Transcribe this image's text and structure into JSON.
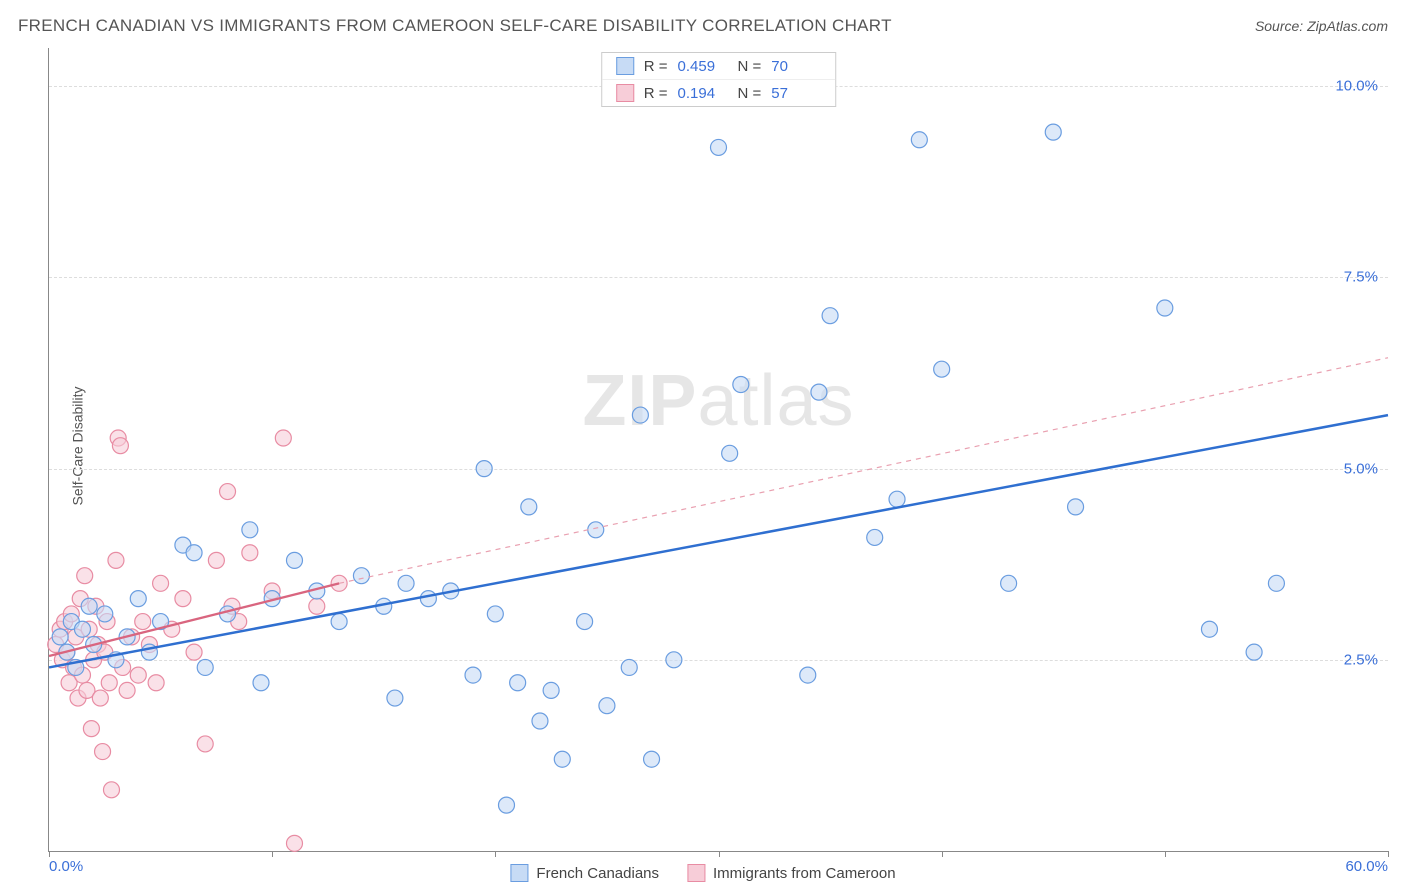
{
  "header": {
    "title": "FRENCH CANADIAN VS IMMIGRANTS FROM CAMEROON SELF-CARE DISABILITY CORRELATION CHART",
    "source_prefix": "Source: ",
    "source": "ZipAtlas.com"
  },
  "chart": {
    "type": "scatter",
    "ylabel": "Self-Care Disability",
    "xlim": [
      0,
      60
    ],
    "ylim": [
      0,
      10.5
    ],
    "xtick_positions": [
      0,
      10,
      20,
      30,
      40,
      50,
      60
    ],
    "ytick_positions": [
      2.5,
      5.0,
      7.5,
      10.0
    ],
    "ytick_labels": [
      "2.5%",
      "5.0%",
      "7.5%",
      "10.0%"
    ],
    "xaxis_min_label": "0.0%",
    "xaxis_max_label": "60.0%",
    "grid_color": "#dddddd",
    "axis_color": "#888888",
    "background_color": "#ffffff",
    "ytick_label_color": "#3a6fd8",
    "marker_radius": 8,
    "marker_stroke_width": 1.2,
    "watermark": "ZIPatlas",
    "series": [
      {
        "name": "French Canadians",
        "fill": "#c7dbf5",
        "stroke": "#6a9de0",
        "fill_opacity": 0.6,
        "r_value": "0.459",
        "n_value": "70",
        "trend": {
          "x1": 0,
          "y1": 2.4,
          "x2": 60,
          "y2": 5.7,
          "color": "#2f6fd0",
          "width": 2.5,
          "dash": "none"
        },
        "points": [
          [
            0.5,
            2.8
          ],
          [
            0.8,
            2.6
          ],
          [
            1.0,
            3.0
          ],
          [
            1.2,
            2.4
          ],
          [
            1.5,
            2.9
          ],
          [
            1.8,
            3.2
          ],
          [
            2.0,
            2.7
          ],
          [
            2.5,
            3.1
          ],
          [
            3.0,
            2.5
          ],
          [
            3.5,
            2.8
          ],
          [
            4.0,
            3.3
          ],
          [
            4.5,
            2.6
          ],
          [
            5.0,
            3.0
          ],
          [
            6.0,
            4.0
          ],
          [
            6.5,
            3.9
          ],
          [
            7.0,
            2.4
          ],
          [
            8.0,
            3.1
          ],
          [
            9.0,
            4.2
          ],
          [
            9.5,
            2.2
          ],
          [
            10.0,
            3.3
          ],
          [
            11.0,
            3.8
          ],
          [
            12.0,
            3.4
          ],
          [
            13.0,
            3.0
          ],
          [
            14.0,
            3.6
          ],
          [
            15.0,
            3.2
          ],
          [
            15.5,
            2.0
          ],
          [
            16.0,
            3.5
          ],
          [
            17.0,
            3.3
          ],
          [
            18.0,
            3.4
          ],
          [
            19.0,
            2.3
          ],
          [
            19.5,
            5.0
          ],
          [
            20.0,
            3.1
          ],
          [
            20.5,
            0.6
          ],
          [
            21.0,
            2.2
          ],
          [
            21.5,
            4.5
          ],
          [
            22.0,
            1.7
          ],
          [
            22.5,
            2.1
          ],
          [
            23.0,
            1.2
          ],
          [
            24.0,
            3.0
          ],
          [
            24.5,
            4.2
          ],
          [
            25.0,
            1.9
          ],
          [
            26.0,
            2.4
          ],
          [
            26.5,
            5.7
          ],
          [
            27.0,
            1.2
          ],
          [
            28.0,
            2.5
          ],
          [
            30.0,
            9.2
          ],
          [
            30.5,
            5.2
          ],
          [
            31.0,
            6.1
          ],
          [
            34.0,
            2.3
          ],
          [
            34.5,
            6.0
          ],
          [
            35.0,
            7.0
          ],
          [
            37.0,
            4.1
          ],
          [
            38.0,
            4.6
          ],
          [
            39.0,
            9.3
          ],
          [
            40.0,
            6.3
          ],
          [
            43.0,
            3.5
          ],
          [
            45.0,
            9.4
          ],
          [
            46.0,
            4.5
          ],
          [
            50.0,
            7.1
          ],
          [
            52.0,
            2.9
          ],
          [
            54.0,
            2.6
          ],
          [
            55.0,
            3.5
          ]
        ]
      },
      {
        "name": "Immigrants from Cameroon",
        "fill": "#f7cdd8",
        "stroke": "#e88ca3",
        "fill_opacity": 0.6,
        "r_value": "0.194",
        "n_value": "57",
        "trend": {
          "x1": 0,
          "y1": 2.55,
          "x2": 13,
          "y2": 3.5,
          "color": "#d9657f",
          "width": 2.3,
          "dash": "none"
        },
        "trend_ext": {
          "x1": 13,
          "y1": 3.5,
          "x2": 60,
          "y2": 6.45,
          "color": "#e9a0b0",
          "width": 1.2,
          "dash": "5,5"
        },
        "points": [
          [
            0.3,
            2.7
          ],
          [
            0.5,
            2.9
          ],
          [
            0.6,
            2.5
          ],
          [
            0.7,
            3.0
          ],
          [
            0.8,
            2.6
          ],
          [
            0.9,
            2.2
          ],
          [
            1.0,
            3.1
          ],
          [
            1.1,
            2.4
          ],
          [
            1.2,
            2.8
          ],
          [
            1.3,
            2.0
          ],
          [
            1.4,
            3.3
          ],
          [
            1.5,
            2.3
          ],
          [
            1.6,
            3.6
          ],
          [
            1.7,
            2.1
          ],
          [
            1.8,
            2.9
          ],
          [
            1.9,
            1.6
          ],
          [
            2.0,
            2.5
          ],
          [
            2.1,
            3.2
          ],
          [
            2.2,
            2.7
          ],
          [
            2.3,
            2.0
          ],
          [
            2.4,
            1.3
          ],
          [
            2.5,
            2.6
          ],
          [
            2.6,
            3.0
          ],
          [
            2.7,
            2.2
          ],
          [
            2.8,
            0.8
          ],
          [
            3.0,
            3.8
          ],
          [
            3.1,
            5.4
          ],
          [
            3.2,
            5.3
          ],
          [
            3.3,
            2.4
          ],
          [
            3.5,
            2.1
          ],
          [
            3.7,
            2.8
          ],
          [
            4.0,
            2.3
          ],
          [
            4.2,
            3.0
          ],
          [
            4.5,
            2.7
          ],
          [
            4.8,
            2.2
          ],
          [
            5.0,
            3.5
          ],
          [
            5.5,
            2.9
          ],
          [
            6.0,
            3.3
          ],
          [
            6.5,
            2.6
          ],
          [
            7.0,
            1.4
          ],
          [
            7.5,
            3.8
          ],
          [
            8.0,
            4.7
          ],
          [
            8.2,
            3.2
          ],
          [
            8.5,
            3.0
          ],
          [
            9.0,
            3.9
          ],
          [
            10.0,
            3.4
          ],
          [
            10.5,
            5.4
          ],
          [
            11.0,
            0.1
          ],
          [
            12.0,
            3.2
          ],
          [
            13.0,
            3.5
          ]
        ]
      }
    ]
  },
  "legend_top": {
    "r_label": "R =",
    "n_label": "N ="
  },
  "legend_bottom": {
    "items": [
      {
        "label": "French Canadians",
        "fill": "#c7dbf5",
        "stroke": "#6a9de0"
      },
      {
        "label": "Immigrants from Cameroon",
        "fill": "#f7cdd8",
        "stroke": "#e88ca3"
      }
    ]
  }
}
